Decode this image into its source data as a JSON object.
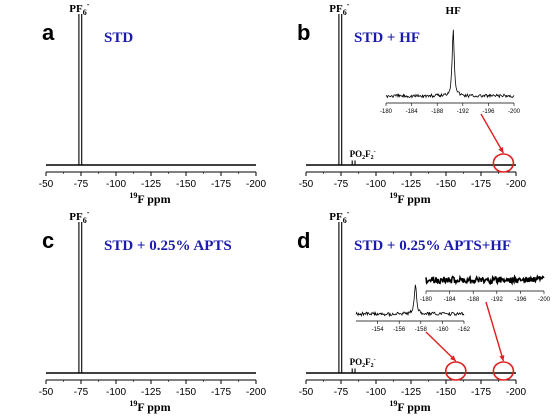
{
  "chart_data": [
    {
      "type": "line",
      "panel": "a",
      "condition": "STD",
      "xlabel": "19F ppm",
      "xlim": [
        -50,
        -200
      ],
      "x_ticks": [
        "-50",
        "-75",
        "-100",
        "-125",
        "-150",
        "-175",
        "-200"
      ],
      "peaks": [
        {
          "label": "PF6-",
          "x": -74.5,
          "height": 1.0,
          "doublet": true
        }
      ],
      "markers": [],
      "insets": []
    },
    {
      "type": "line",
      "panel": "b",
      "condition": "STD + HF",
      "xlabel": "19F ppm",
      "xlim": [
        -50,
        -200
      ],
      "x_ticks": [
        "-50",
        "-75",
        "-100",
        "-125",
        "-150",
        "-175",
        "-200"
      ],
      "peaks": [
        {
          "label": "PF6-",
          "x": -74.5,
          "height": 1.0,
          "doublet": true
        },
        {
          "label": "PO2F2-",
          "x": -84,
          "height": 0.03,
          "doublet": true
        }
      ],
      "markers": [
        {
          "x": -191,
          "arrow_to_inset": 0
        }
      ],
      "insets": [
        {
          "label": "HF",
          "xlim": [
            -180,
            -200
          ],
          "x_ticks": [
            "-180",
            "-184",
            "-188",
            "-192",
            "-196",
            "-200"
          ],
          "peak_x": -190.5,
          "peak_height": 0.85
        }
      ]
    },
    {
      "type": "line",
      "panel": "c",
      "condition": "STD + 0.25% APTS",
      "xlabel": "19F ppm",
      "xlim": [
        -50,
        -200
      ],
      "x_ticks": [
        "-50",
        "-75",
        "-100",
        "-125",
        "-150",
        "-175",
        "-200"
      ],
      "peaks": [
        {
          "label": "PF6-",
          "x": -74.5,
          "height": 1.0,
          "doublet": true
        }
      ],
      "markers": [],
      "insets": []
    },
    {
      "type": "line",
      "panel": "d",
      "condition": "STD + 0.25% APTS+HF",
      "xlabel": "19F ppm",
      "xlim": [
        -50,
        -200
      ],
      "x_ticks": [
        "-50",
        "-75",
        "-100",
        "-125",
        "-150",
        "-175",
        "-200"
      ],
      "peaks": [
        {
          "label": "PF6-",
          "x": -74.5,
          "height": 1.0,
          "doublet": true
        },
        {
          "label": "PO2F2-",
          "x": -84,
          "height": 0.03,
          "doublet": true
        }
      ],
      "markers": [
        {
          "x": -157,
          "arrow_to_inset": 0
        },
        {
          "x": -191,
          "arrow_to_inset": 1
        }
      ],
      "insets": [
        {
          "label": "",
          "xlim": [
            -152,
            -162
          ],
          "x_ticks": [
            "-154",
            "-156",
            "-158",
            "-160",
            "-162"
          ],
          "peak_x": -157.5,
          "peak_height": 0.8
        },
        {
          "label": "",
          "xlim": [
            -180,
            -200
          ],
          "x_ticks": [
            "-180",
            "-184",
            "-188",
            "-192",
            "-196",
            "-200"
          ],
          "peak_x": null,
          "peak_height": 0
        }
      ]
    }
  ],
  "colors": {
    "condition_text": "#1b1bb0",
    "marker": "#e02020",
    "spectrum": "#000000"
  }
}
